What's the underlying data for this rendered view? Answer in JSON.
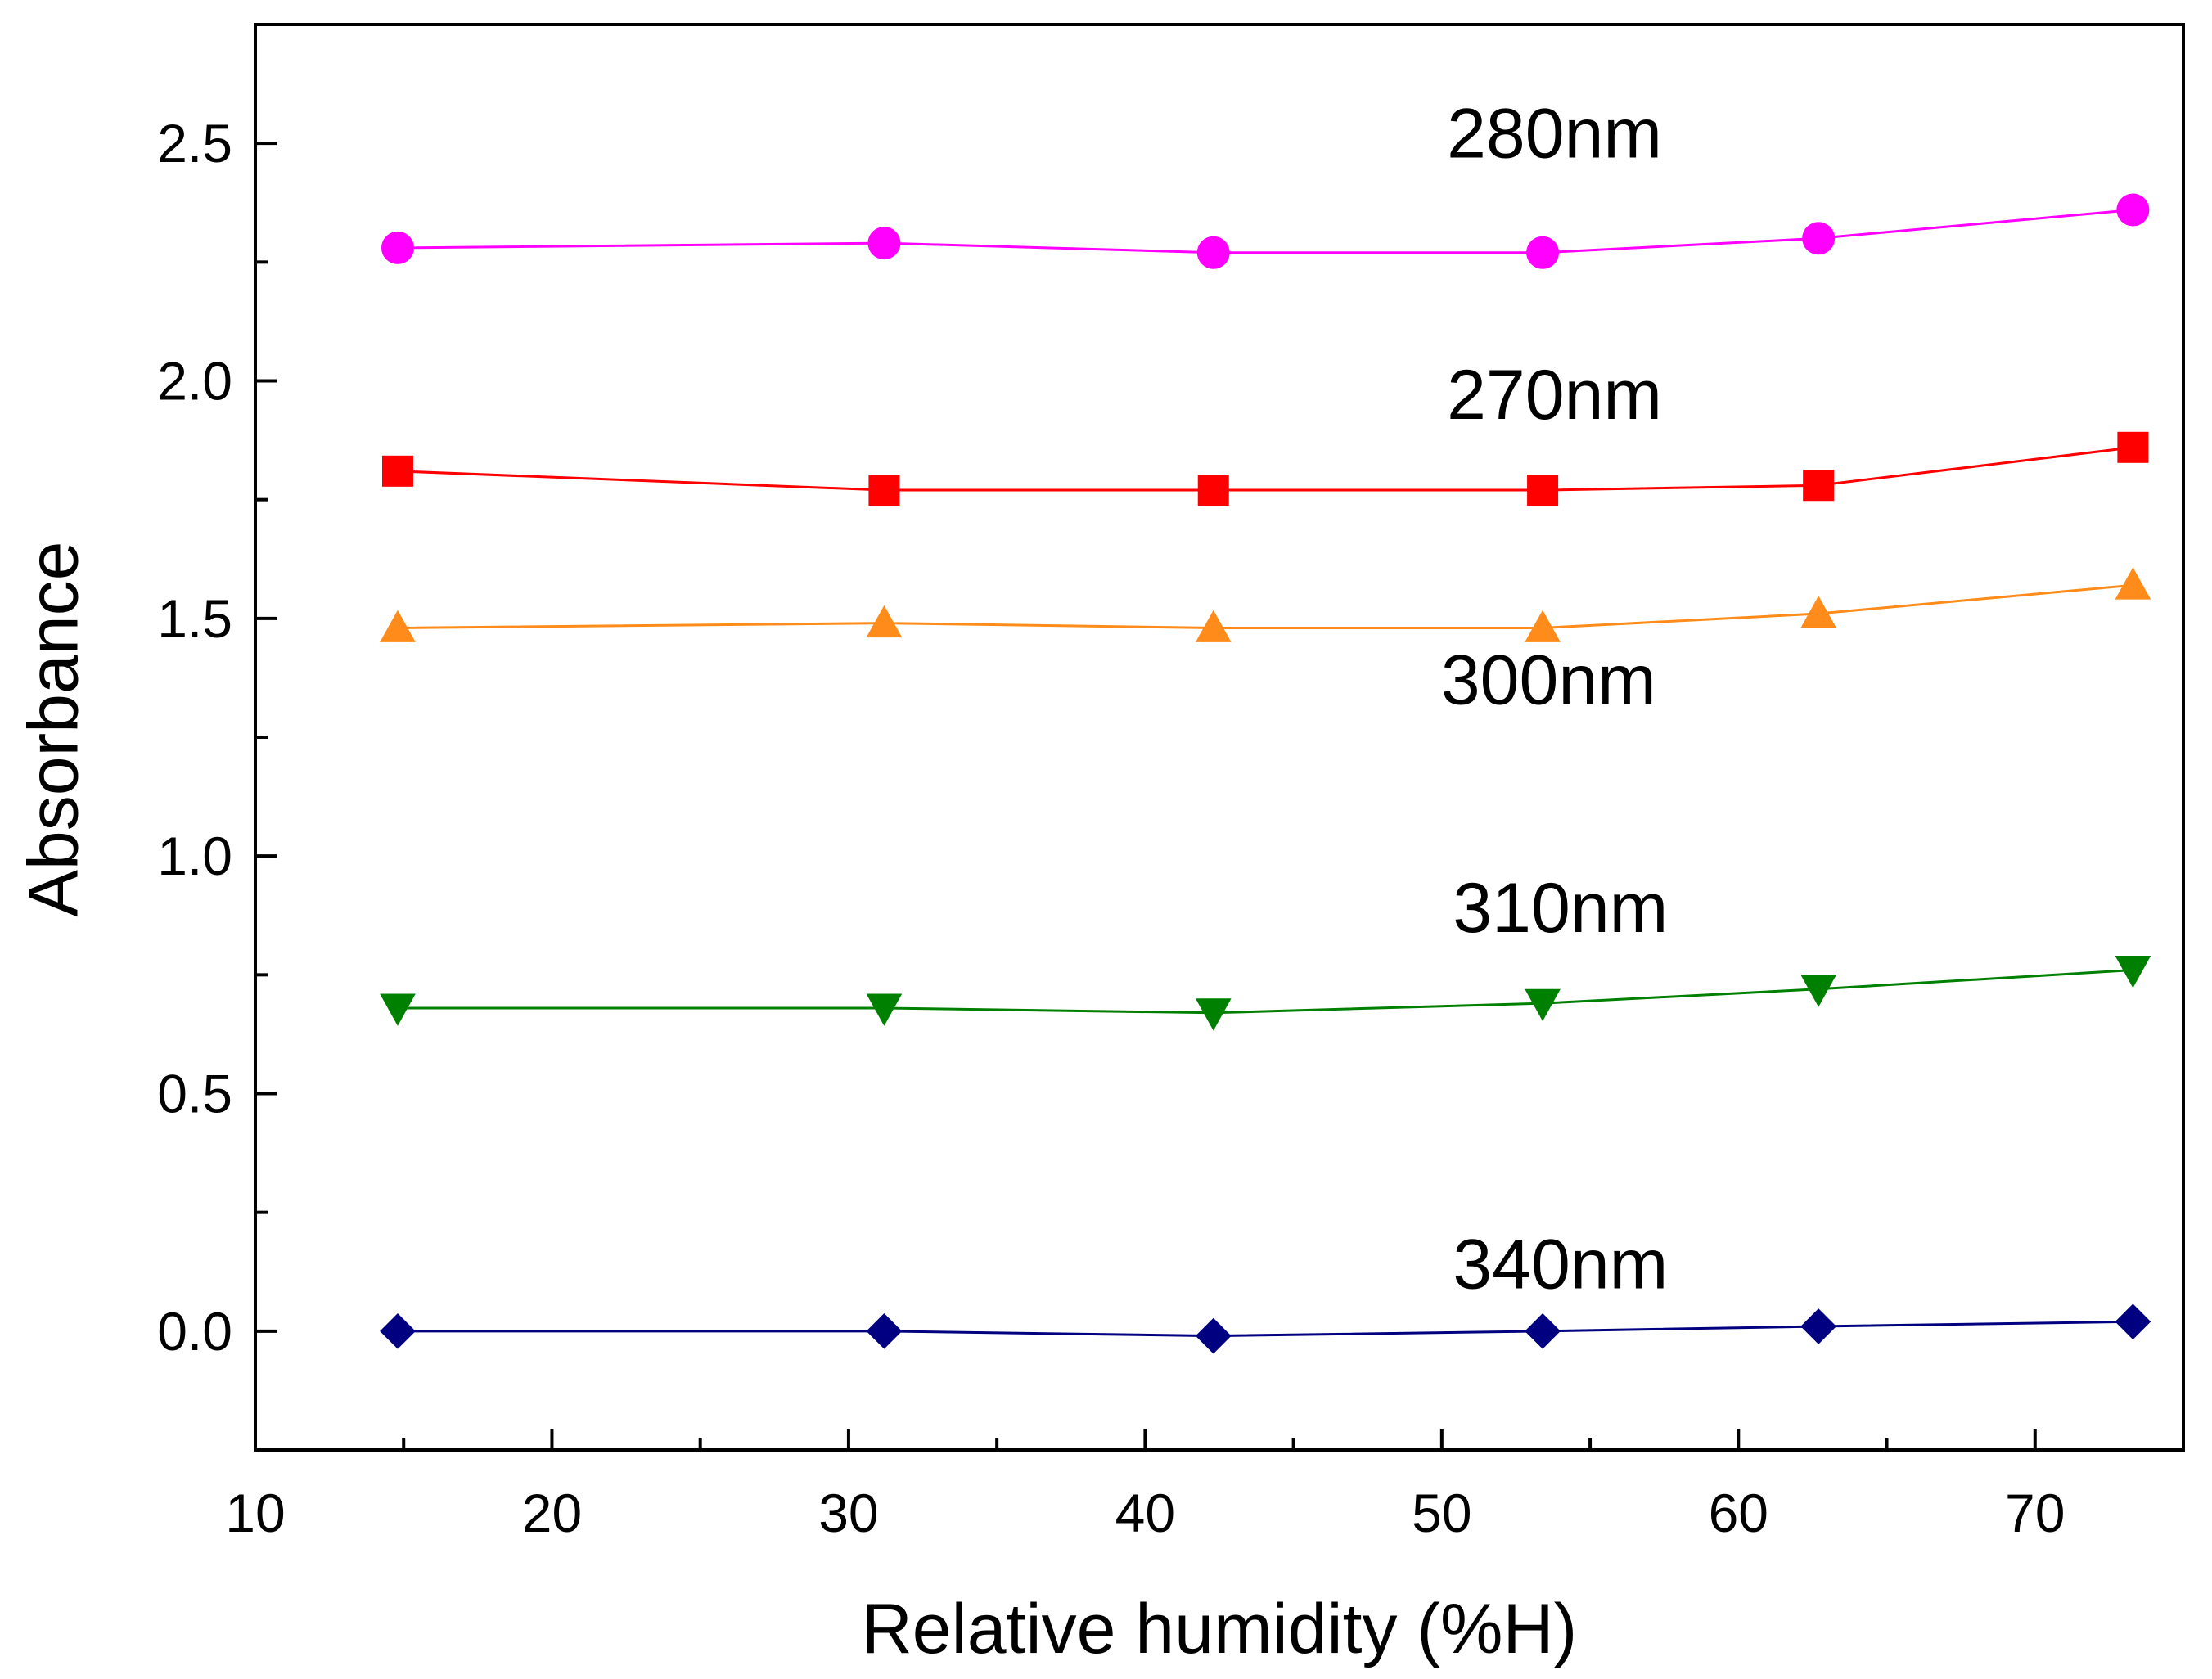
{
  "chart_data": {
    "type": "line",
    "title": "",
    "xlabel": "Relative humidity (%H)",
    "ylabel": "Absorbance",
    "xlim": [
      10,
      75
    ],
    "ylim": [
      -0.25,
      2.75
    ],
    "x_major_ticks": [
      10,
      20,
      30,
      40,
      50,
      60,
      70
    ],
    "x_tick_labels": [
      "10",
      "20",
      "30",
      "40",
      "50",
      "60",
      "70"
    ],
    "x_minor_ticks": [
      15,
      25,
      35,
      45,
      55,
      65
    ],
    "y_major_ticks": [
      0.0,
      0.5,
      1.0,
      1.5,
      2.0,
      2.5
    ],
    "y_tick_labels": [
      "0.0",
      "0.5",
      "1.0",
      "1.5",
      "2.0",
      "2.5"
    ],
    "y_minor_ticks": [
      -0.25,
      0.25,
      0.75,
      1.25,
      1.75,
      2.25
    ],
    "grid": false,
    "legend": "none",
    "x": [
      14.8,
      31.2,
      42.3,
      53.4,
      62.7,
      73.3
    ],
    "series": [
      {
        "name": "280nm",
        "label": "280nm",
        "label_anchor": [
          53.8,
          2.47
        ],
        "color": "#ff00ff",
        "marker": "circle",
        "values": [
          2.28,
          2.29,
          2.27,
          2.27,
          2.3,
          2.36
        ]
      },
      {
        "name": "270nm",
        "label": "270nm",
        "label_anchor": [
          53.8,
          1.92
        ],
        "color": "#ff0000",
        "marker": "square",
        "values": [
          1.81,
          1.77,
          1.77,
          1.77,
          1.78,
          1.86
        ]
      },
      {
        "name": "300nm",
        "label": "300nm",
        "label_anchor": [
          53.6,
          1.32
        ],
        "color": "#ff8c1a",
        "marker": "triangle-up",
        "values": [
          1.48,
          1.49,
          1.48,
          1.48,
          1.51,
          1.57
        ]
      },
      {
        "name": "310nm",
        "label": "310nm",
        "label_anchor": [
          54.0,
          0.84
        ],
        "color": "#008000",
        "marker": "triangle-down",
        "values": [
          0.68,
          0.68,
          0.67,
          0.69,
          0.72,
          0.76
        ]
      },
      {
        "name": "340nm",
        "label": "340nm",
        "label_anchor": [
          54.0,
          0.09
        ],
        "color": "#000080",
        "marker": "diamond",
        "values": [
          0.0,
          0.0,
          -0.01,
          0.0,
          0.01,
          0.02
        ]
      }
    ]
  }
}
